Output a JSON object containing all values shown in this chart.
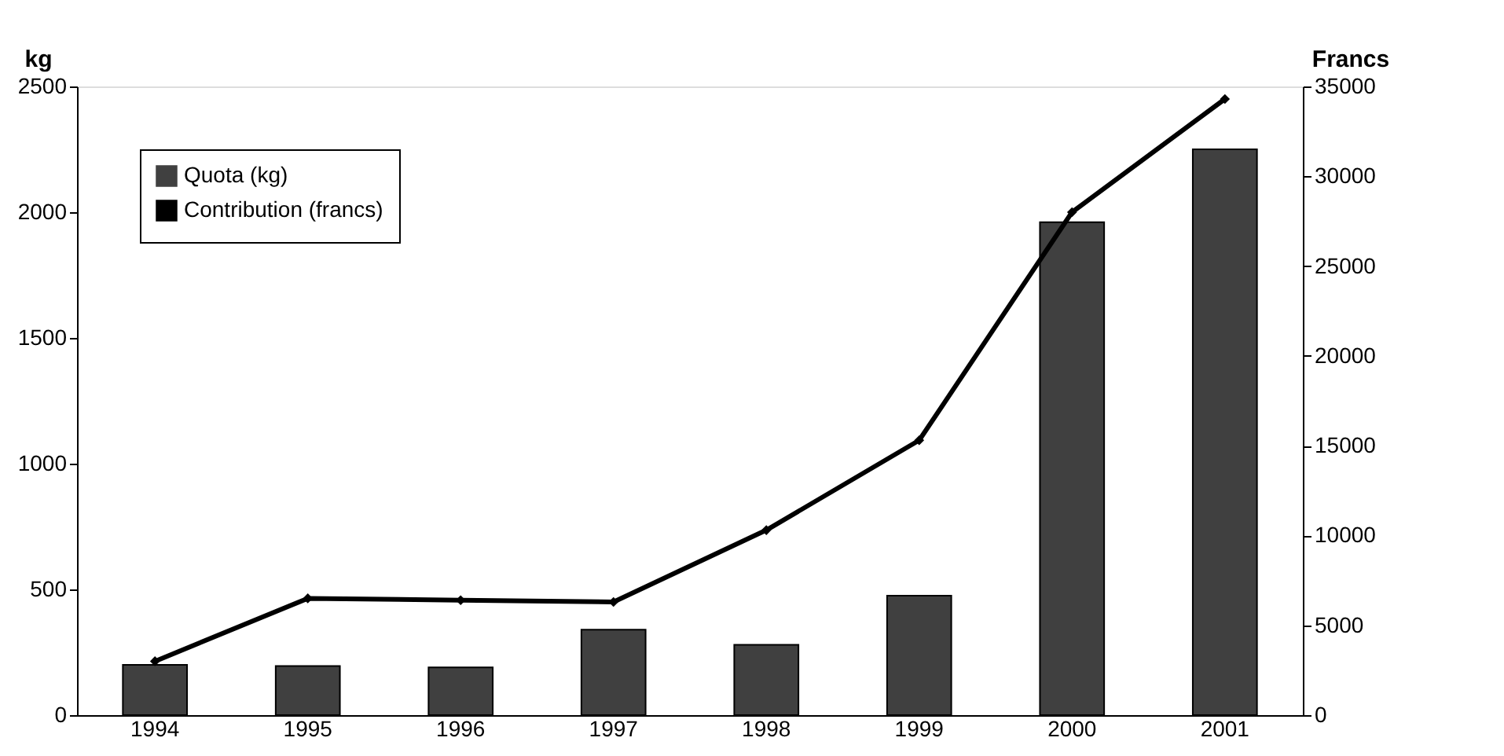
{
  "chart_data": {
    "type": "bar",
    "categories": [
      "1994",
      "1995",
      "1996",
      "1997",
      "1998",
      "1999",
      "2000",
      "2001"
    ],
    "series": [
      {
        "name": "Quota (kg)",
        "color": "#404040",
        "values": [
          200,
          195,
          190,
          340,
          280,
          475,
          1960,
          2250
        ]
      },
      {
        "name": "Contribution (francs)",
        "type": "line",
        "axis": "y2",
        "color": "#000000",
        "marker": "diamond",
        "values": [
          3000,
          6500,
          6400,
          6300,
          10300,
          15300,
          28000,
          34300
        ]
      }
    ],
    "ylabel": "kg",
    "y2label": "Francs",
    "ylim": [
      0,
      2500
    ],
    "yticks": [
      0,
      500,
      1000,
      1500,
      2000,
      2500
    ],
    "y2lim": [
      0,
      35000
    ],
    "y2ticks": [
      0,
      5000,
      10000,
      15000,
      20000,
      25000,
      30000,
      35000
    ],
    "grid": false,
    "legend": "top left"
  }
}
